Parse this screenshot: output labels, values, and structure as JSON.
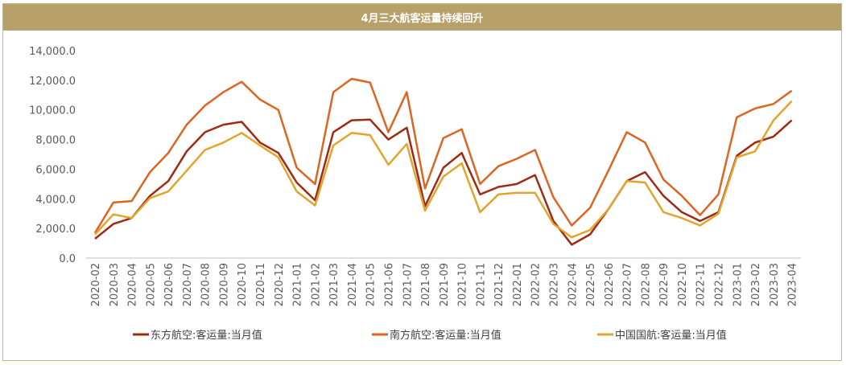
{
  "chart_data": {
    "type": "line",
    "title": "4月三大航客运量持续回升",
    "xlabel": "",
    "ylabel": "",
    "ylim": [
      0,
      14000
    ],
    "yticks": [
      "0.0",
      "2,000.0",
      "4,000.0",
      "6,000.0",
      "8,000.0",
      "10,000.0",
      "12,000.0",
      "14,000.0"
    ],
    "yticks_values": [
      0,
      2000,
      4000,
      6000,
      8000,
      10000,
      12000,
      14000
    ],
    "grid": false,
    "legend_position": "bottom",
    "categories": [
      "2020-02",
      "2020-03",
      "2020-04",
      "2020-05",
      "2020-06",
      "2020-07",
      "2020-08",
      "2020-09",
      "2020-10",
      "2020-11",
      "2020-12",
      "2021-01",
      "2021-02",
      "2021-03",
      "2021-04",
      "2021-05",
      "2021-06",
      "2021-07",
      "2021-08",
      "2021-09",
      "2021-10",
      "2021-11",
      "2021-12",
      "2022-01",
      "2022-02",
      "2022-03",
      "2022-04",
      "2022-05",
      "2022-06",
      "2022-07",
      "2022-08",
      "2022-09",
      "2022-10",
      "2022-11",
      "2022-12",
      "2023-01",
      "2023-02",
      "2023-03",
      "2023-04"
    ],
    "series": [
      {
        "name": "东方航空:客运量:当月值",
        "color": "#9e2a12",
        "values": [
          1300,
          2300,
          2700,
          4200,
          5200,
          7200,
          8500,
          9000,
          9200,
          7800,
          7100,
          5100,
          3900,
          8500,
          9300,
          9350,
          8000,
          8800,
          3500,
          6100,
          7100,
          4300,
          4800,
          5000,
          5600,
          2500,
          900,
          1600,
          3300,
          5200,
          5800,
          4200,
          3100,
          2500,
          3100,
          6900,
          7800,
          8200,
          9300
        ]
      },
      {
        "name": "南方航空:客运量:当月值",
        "color": "#dc6521",
        "values": [
          1700,
          3750,
          3850,
          5800,
          7100,
          9000,
          10300,
          11200,
          11900,
          10700,
          10000,
          6100,
          5000,
          11200,
          12100,
          11850,
          8500,
          11200,
          4700,
          8100,
          8700,
          5000,
          6200,
          6700,
          7300,
          4100,
          2200,
          3400,
          5900,
          8500,
          7800,
          5300,
          4200,
          2900,
          4300,
          9500,
          10100,
          10400,
          11300
        ]
      },
      {
        "name": "中国国航:客运量:当月值",
        "color": "#e3a42d",
        "values": [
          1600,
          2950,
          2700,
          4050,
          4500,
          5900,
          7300,
          7800,
          8450,
          7600,
          6800,
          4500,
          3550,
          7600,
          8450,
          8300,
          6300,
          7700,
          3200,
          5500,
          6400,
          3100,
          4300,
          4400,
          4400,
          2300,
          1400,
          1900,
          3300,
          5200,
          5100,
          3100,
          2700,
          2200,
          3000,
          6800,
          7200,
          9300,
          10600
        ]
      }
    ]
  }
}
